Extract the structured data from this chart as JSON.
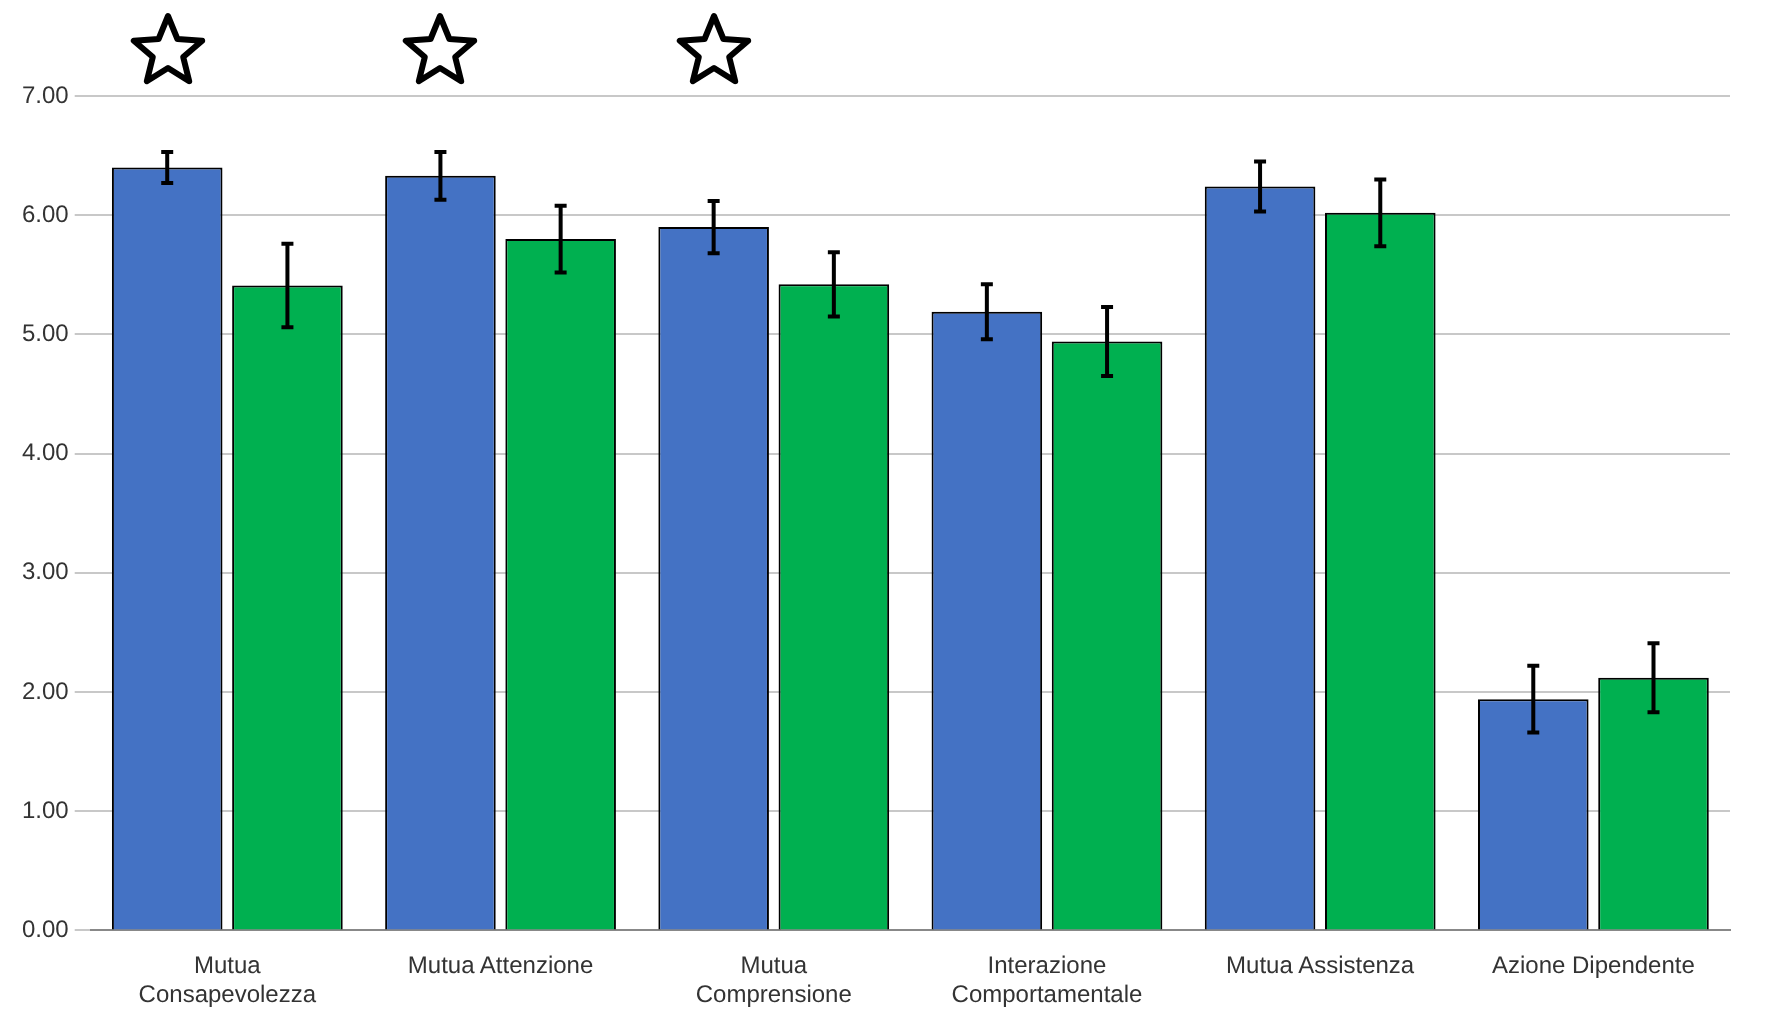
{
  "chart_data": {
    "type": "bar",
    "categories": [
      "Mutua Consapevolezza",
      "Mutua Attenzione",
      "Mutua Comprensione",
      "Interazione Comportamentale",
      "Mutua Assistenza",
      "Azione Dipendente"
    ],
    "series": [
      {
        "color": "#4472c4",
        "values": [
          6.4,
          6.33,
          5.9,
          5.19,
          6.24,
          1.94
        ],
        "errors": [
          0.13,
          0.2,
          0.22,
          0.23,
          0.21,
          0.28
        ]
      },
      {
        "color": "#00b050",
        "values": [
          5.41,
          5.8,
          5.42,
          4.94,
          6.02,
          2.12
        ],
        "errors": [
          0.35,
          0.28,
          0.27,
          0.29,
          0.28,
          0.29
        ]
      }
    ],
    "ylim": [
      0,
      7
    ],
    "yticks": [
      {
        "value": 0,
        "label": "0.00"
      },
      {
        "value": 1,
        "label": "1.00"
      },
      {
        "value": 2,
        "label": "2.00"
      },
      {
        "value": 3,
        "label": "3.00"
      },
      {
        "value": 4,
        "label": "4.00"
      },
      {
        "value": 5,
        "label": "5.00"
      },
      {
        "value": 6,
        "label": "6.00"
      },
      {
        "value": 7,
        "label": "7.00"
      }
    ],
    "grid": "y"
  }
}
